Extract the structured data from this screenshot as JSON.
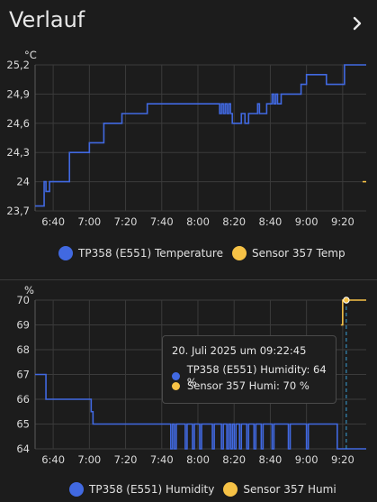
{
  "card": {
    "title": "Verlauf",
    "more_icon": "chevron-right-icon"
  },
  "colors": {
    "blue": "#4169e1",
    "orange": "#f6c246",
    "grid": "#3b3b3b",
    "background": "#1c1c1c",
    "crosshair": "#3aa0d8"
  },
  "chart_data": [
    {
      "type": "line",
      "unit": "°C",
      "x_ticks": [
        "6:40",
        "7:00",
        "7:20",
        "7:40",
        "8:00",
        "8:20",
        "8:40",
        "9:00",
        "9:20"
      ],
      "y_ticks": [
        "25,2",
        "24,9",
        "24,6",
        "24,3",
        "24",
        "23,7"
      ],
      "xlim": [
        "06:30",
        "09:33"
      ],
      "ylim": [
        23.7,
        25.2
      ],
      "legend": [
        "TP358 (E551) Temperature",
        "Sensor 357 Temp"
      ],
      "series": [
        {
          "name": "TP358 (E551) Temperature",
          "color": "#4169e1",
          "step": true,
          "x": [
            "06:30",
            "06:35",
            "06:35",
            "06:36",
            "06:38",
            "06:49",
            "07:00",
            "07:08",
            "07:18",
            "07:26",
            "07:32",
            "07:38",
            "08:12",
            "08:13",
            "08:14",
            "08:15",
            "08:16",
            "08:17",
            "08:18",
            "08:19",
            "08:24",
            "08:26",
            "08:28",
            "08:33",
            "08:34",
            "08:38",
            "08:41",
            "08:42",
            "08:43",
            "08:44",
            "08:46",
            "08:48",
            "08:57",
            "09:00",
            "09:11",
            "09:17",
            "09:21",
            "09:33"
          ],
          "y": [
            23.75,
            23.75,
            24.0,
            23.9,
            24.0,
            24.3,
            24.4,
            24.6,
            24.7,
            24.7,
            24.8,
            24.8,
            24.7,
            24.8,
            24.7,
            24.8,
            24.7,
            24.8,
            24.7,
            24.6,
            24.7,
            24.6,
            24.7,
            24.8,
            24.7,
            24.8,
            24.9,
            24.8,
            24.9,
            24.8,
            24.9,
            24.9,
            25.0,
            25.1,
            25.0,
            25.0,
            25.2,
            25.2
          ]
        },
        {
          "name": "Sensor 357 Temp",
          "color": "#f6c246",
          "step": true,
          "x": [
            "09:31",
            "09:33"
          ],
          "y": [
            24.0,
            24.0
          ]
        }
      ]
    },
    {
      "type": "line",
      "unit": "%",
      "x_ticks": [
        "6:40",
        "7:00",
        "7:20",
        "7:40",
        "8:00",
        "8:20",
        "8:40",
        "9:00",
        "9:20"
      ],
      "y_ticks": [
        "70",
        "69",
        "68",
        "67",
        "66",
        "65",
        "64"
      ],
      "xlim": [
        "06:30",
        "09:33"
      ],
      "ylim": [
        64,
        70
      ],
      "legend": [
        "TP358 (E551) Humidity",
        "Sensor 357 Humi"
      ],
      "series": [
        {
          "name": "TP358 (E551) Humidity",
          "color": "#4169e1",
          "step": true,
          "x": [
            "06:30",
            "06:36",
            "06:36",
            "07:01",
            "07:01",
            "07:02",
            "07:02",
            "07:44",
            "07:45",
            "07:46",
            "07:47",
            "07:48",
            "07:53",
            "07:54",
            "07:57",
            "07:58",
            "08:01",
            "08:02",
            "08:08",
            "08:09",
            "08:13",
            "08:14",
            "08:16",
            "08:17",
            "08:18",
            "08:19",
            "08:20",
            "08:21",
            "08:23",
            "08:24",
            "08:27",
            "08:28",
            "08:31",
            "08:32",
            "08:35",
            "08:36",
            "08:41",
            "08:42",
            "08:50",
            "08:51",
            "09:00",
            "09:01",
            "09:17",
            "09:33"
          ],
          "y": [
            67,
            67,
            66,
            66,
            65.5,
            65.5,
            65,
            65,
            64,
            65,
            64,
            65,
            64,
            65,
            64,
            65,
            64,
            65,
            64,
            65,
            64,
            65,
            64,
            65,
            64,
            65,
            64,
            65,
            64,
            65,
            64,
            65,
            64,
            65,
            64,
            65,
            64,
            65,
            64,
            65,
            64,
            65,
            64,
            64
          ]
        },
        {
          "name": "Sensor 357 Humi",
          "color": "#f6c246",
          "step": true,
          "x": [
            "09:19",
            "09:20",
            "09:20",
            "09:22",
            "09:22",
            "09:33"
          ],
          "y": [
            69,
            69,
            70,
            70,
            70,
            70
          ]
        }
      ],
      "tooltip": {
        "title": "20. Juli 2025 um 09:22:45",
        "rows": [
          {
            "label": "TP358 (E551) Humidity: 64 %",
            "color": "#4169e1"
          },
          {
            "label": "Sensor 357 Humi: 70 %",
            "color": "#f6c246"
          }
        ],
        "x": "09:22"
      }
    }
  ]
}
